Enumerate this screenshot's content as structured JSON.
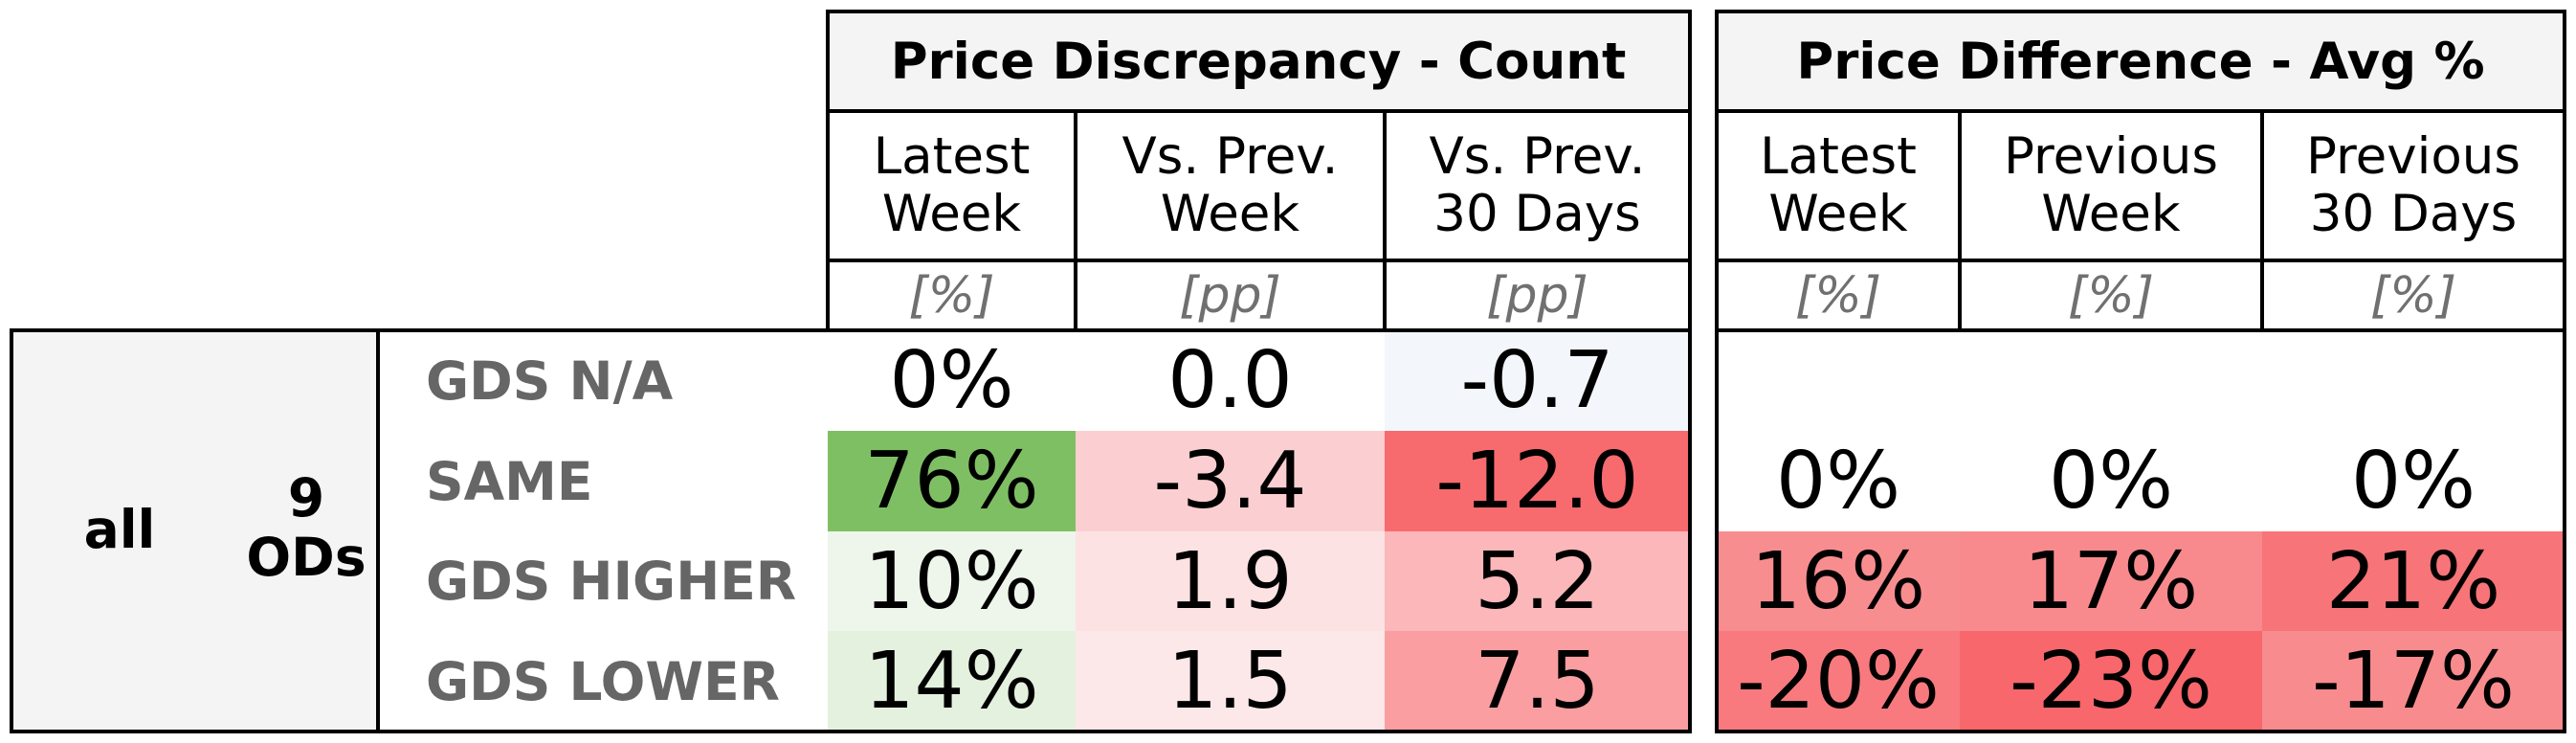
{
  "table": {
    "group_all": "all",
    "group_ods_number": "9",
    "group_ods_unit": "ODs",
    "count_header": "Price Discrepancy - Count",
    "avg_header": "Price Difference - Avg %",
    "count_cols": [
      {
        "line1": "Latest",
        "line2": "Week",
        "unit": "[%]"
      },
      {
        "line1": "Vs. Prev.",
        "line2": "Week",
        "unit": "[pp]"
      },
      {
        "line1": "Vs. Prev.",
        "line2": "30 Days",
        "unit": "[pp]"
      }
    ],
    "avg_cols": [
      {
        "line1": "Latest",
        "line2": "Week",
        "unit": "[%]"
      },
      {
        "line1": "Previous",
        "line2": "Week",
        "unit": "[%]"
      },
      {
        "line1": "Previous",
        "line2": "30 Days",
        "unit": "[%]"
      }
    ],
    "rows": [
      {
        "label": "GDS N/A",
        "count": [
          {
            "v": "0%",
            "bg": "#ffffff"
          },
          {
            "v": "0.0",
            "bg": "#ffffff"
          },
          {
            "v": "-0.7",
            "bg": "#f3f7fc"
          }
        ],
        "avg": [
          {
            "v": "",
            "bg": "#ffffff"
          },
          {
            "v": "",
            "bg": "#ffffff"
          },
          {
            "v": "",
            "bg": "#ffffff"
          }
        ]
      },
      {
        "label": "SAME",
        "count": [
          {
            "v": "76%",
            "bg": "#7fbf64"
          },
          {
            "v": "-3.4",
            "bg": "#fbcfd1"
          },
          {
            "v": "-12.0",
            "bg": "#f76a6e"
          }
        ],
        "avg": [
          {
            "v": "0%",
            "bg": "#ffffff"
          },
          {
            "v": "0%",
            "bg": "#ffffff"
          },
          {
            "v": "0%",
            "bg": "#ffffff"
          }
        ]
      },
      {
        "label": "GDS HIGHER",
        "count": [
          {
            "v": "10%",
            "bg": "#eef5ea"
          },
          {
            "v": "1.9",
            "bg": "#fde2e3"
          },
          {
            "v": "5.2",
            "bg": "#fbb7b9"
          }
        ],
        "avg": [
          {
            "v": "16%",
            "bg": "#f88d90"
          },
          {
            "v": "17%",
            "bg": "#f88a8d"
          },
          {
            "v": "21%",
            "bg": "#f77478"
          }
        ]
      },
      {
        "label": "GDS LOWER",
        "count": [
          {
            "v": "14%",
            "bg": "#e4f1df"
          },
          {
            "v": "1.5",
            "bg": "#fde8e9"
          },
          {
            "v": "7.5",
            "bg": "#fa9ea1"
          }
        ],
        "avg": [
          {
            "v": "-20%",
            "bg": "#f87a7e"
          },
          {
            "v": "-23%",
            "bg": "#f7676b"
          },
          {
            "v": "-17%",
            "bg": "#f88b8e"
          }
        ]
      }
    ]
  },
  "colors": {
    "border": "#000000",
    "header_bg": "#f4f4f4",
    "row_label": "#666666",
    "unit": "#707070"
  }
}
